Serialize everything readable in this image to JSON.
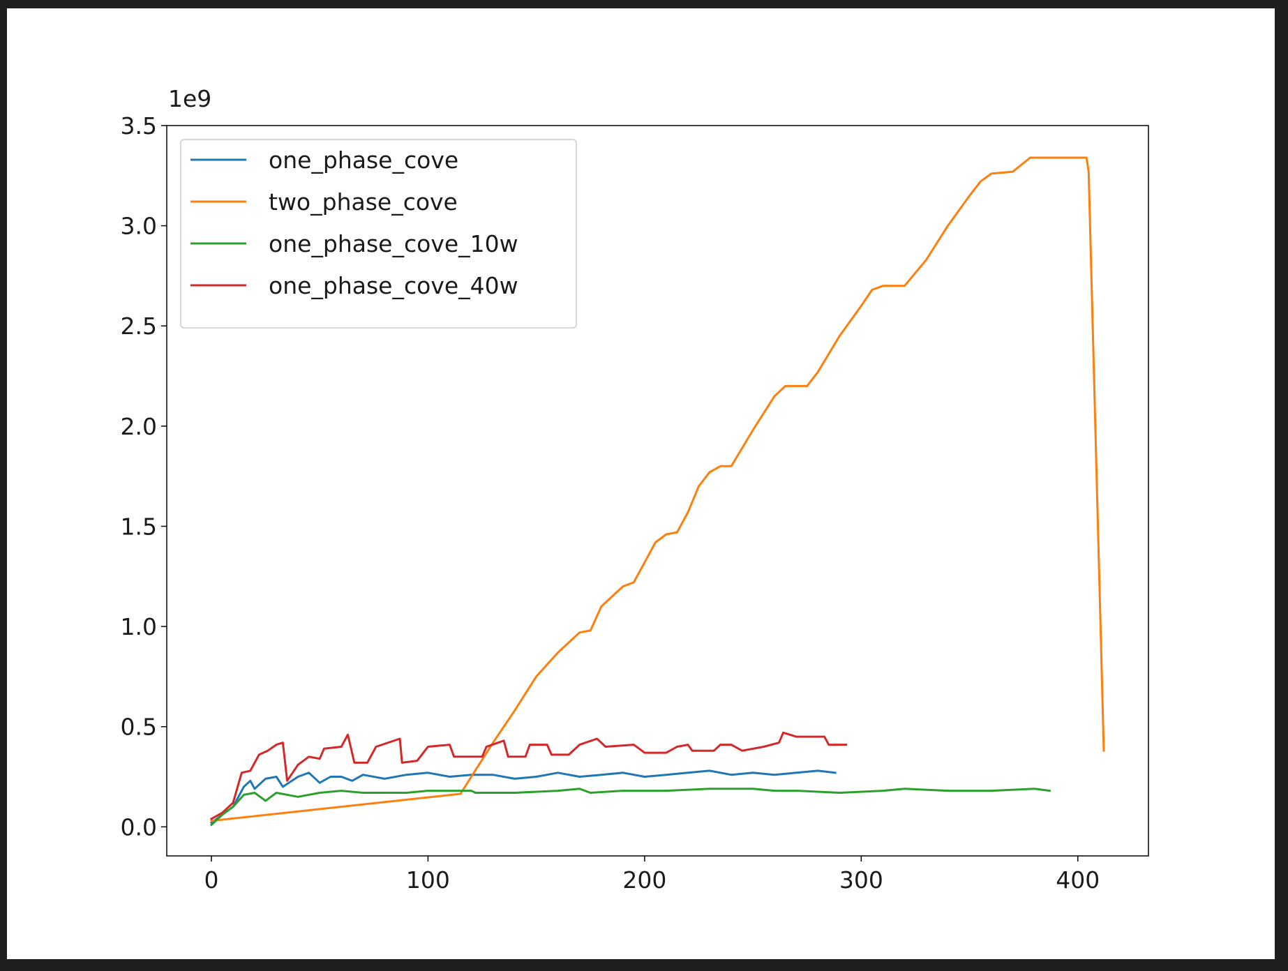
{
  "chart_data": {
    "type": "line",
    "y_offset_label": "1e9",
    "xlim": [
      -20.6,
      432.6
    ],
    "xticks": [
      0,
      100,
      200,
      300,
      400
    ],
    "ylim": [
      -0.145,
      3.5
    ],
    "yticks": [
      {
        "value": 0,
        "label": "0.0"
      },
      0.5,
      {
        "value": 1,
        "label": "1.0"
      },
      1.5,
      {
        "value": 2,
        "label": "2.0"
      },
      2.5,
      {
        "value": 3,
        "label": "3.0"
      },
      3.5
    ],
    "legend": "upper left",
    "series": [
      {
        "name": "one_phase_cove",
        "color": "#1f77b4",
        "x": [
          0,
          5,
          10,
          15,
          18,
          20,
          25,
          30,
          33,
          40,
          45,
          50,
          55,
          60,
          65,
          70,
          80,
          90,
          100,
          110,
          120,
          130,
          140,
          150,
          160,
          170,
          180,
          190,
          200,
          210,
          220,
          230,
          240,
          250,
          260,
          270,
          280,
          288
        ],
        "values": [
          0.02,
          0.06,
          0.1,
          0.2,
          0.23,
          0.19,
          0.24,
          0.25,
          0.2,
          0.25,
          0.27,
          0.22,
          0.25,
          0.25,
          0.23,
          0.26,
          0.24,
          0.26,
          0.27,
          0.25,
          0.26,
          0.26,
          0.24,
          0.25,
          0.27,
          0.25,
          0.26,
          0.27,
          0.25,
          0.26,
          0.27,
          0.28,
          0.26,
          0.27,
          0.26,
          0.27,
          0.28,
          0.27
        ]
      },
      {
        "name": "two_phase_cove",
        "color": "#ff7f0e",
        "x": [
          0,
          115,
          120,
          130,
          140,
          150,
          160,
          170,
          175,
          180,
          190,
          195,
          200,
          205,
          210,
          215,
          220,
          225,
          230,
          235,
          240,
          250,
          260,
          265,
          275,
          280,
          290,
          300,
          305,
          310,
          320,
          330,
          340,
          350,
          355,
          360,
          370,
          378,
          404,
          405,
          412
        ],
        "values": [
          0.03,
          0.165,
          0.25,
          0.42,
          0.58,
          0.75,
          0.87,
          0.97,
          0.98,
          1.1,
          1.2,
          1.22,
          1.32,
          1.42,
          1.46,
          1.47,
          1.57,
          1.7,
          1.77,
          1.8,
          1.8,
          1.98,
          2.15,
          2.2,
          2.2,
          2.27,
          2.45,
          2.6,
          2.68,
          2.7,
          2.7,
          2.83,
          3.0,
          3.15,
          3.22,
          3.26,
          3.27,
          3.34,
          3.34,
          3.27,
          0.38
        ]
      },
      {
        "name": "one_phase_cove_10w",
        "color": "#2ca02c",
        "x": [
          0,
          5,
          10,
          15,
          20,
          25,
          30,
          40,
          50,
          60,
          70,
          80,
          90,
          100,
          110,
          120,
          122,
          140,
          160,
          170,
          175,
          190,
          210,
          230,
          250,
          260,
          270,
          290,
          310,
          320,
          340,
          360,
          380,
          387
        ],
        "values": [
          0.01,
          0.06,
          0.1,
          0.16,
          0.17,
          0.13,
          0.17,
          0.15,
          0.17,
          0.18,
          0.17,
          0.17,
          0.17,
          0.18,
          0.18,
          0.18,
          0.17,
          0.17,
          0.18,
          0.19,
          0.17,
          0.18,
          0.18,
          0.19,
          0.19,
          0.18,
          0.18,
          0.17,
          0.18,
          0.19,
          0.18,
          0.18,
          0.19,
          0.18
        ]
      },
      {
        "name": "one_phase_cove_40w",
        "color": "#d62728",
        "x": [
          0,
          5,
          10,
          14,
          18,
          22,
          26,
          30,
          33,
          35,
          40,
          45,
          50,
          52,
          60,
          63,
          66,
          72,
          76,
          87,
          88,
          95,
          100,
          110,
          112,
          125,
          127,
          135,
          137,
          145,
          147,
          155,
          157,
          165,
          170,
          178,
          182,
          195,
          200,
          210,
          215,
          220,
          222,
          232,
          235,
          240,
          245,
          255,
          262,
          264,
          270,
          283,
          285,
          293
        ],
        "values": [
          0.04,
          0.07,
          0.12,
          0.27,
          0.28,
          0.36,
          0.38,
          0.41,
          0.42,
          0.23,
          0.31,
          0.35,
          0.34,
          0.39,
          0.4,
          0.46,
          0.32,
          0.32,
          0.4,
          0.44,
          0.32,
          0.33,
          0.4,
          0.41,
          0.35,
          0.35,
          0.4,
          0.43,
          0.35,
          0.35,
          0.41,
          0.41,
          0.36,
          0.36,
          0.41,
          0.44,
          0.4,
          0.41,
          0.37,
          0.37,
          0.4,
          0.41,
          0.38,
          0.38,
          0.41,
          0.41,
          0.38,
          0.4,
          0.42,
          0.47,
          0.45,
          0.45,
          0.41,
          0.41
        ]
      }
    ]
  }
}
